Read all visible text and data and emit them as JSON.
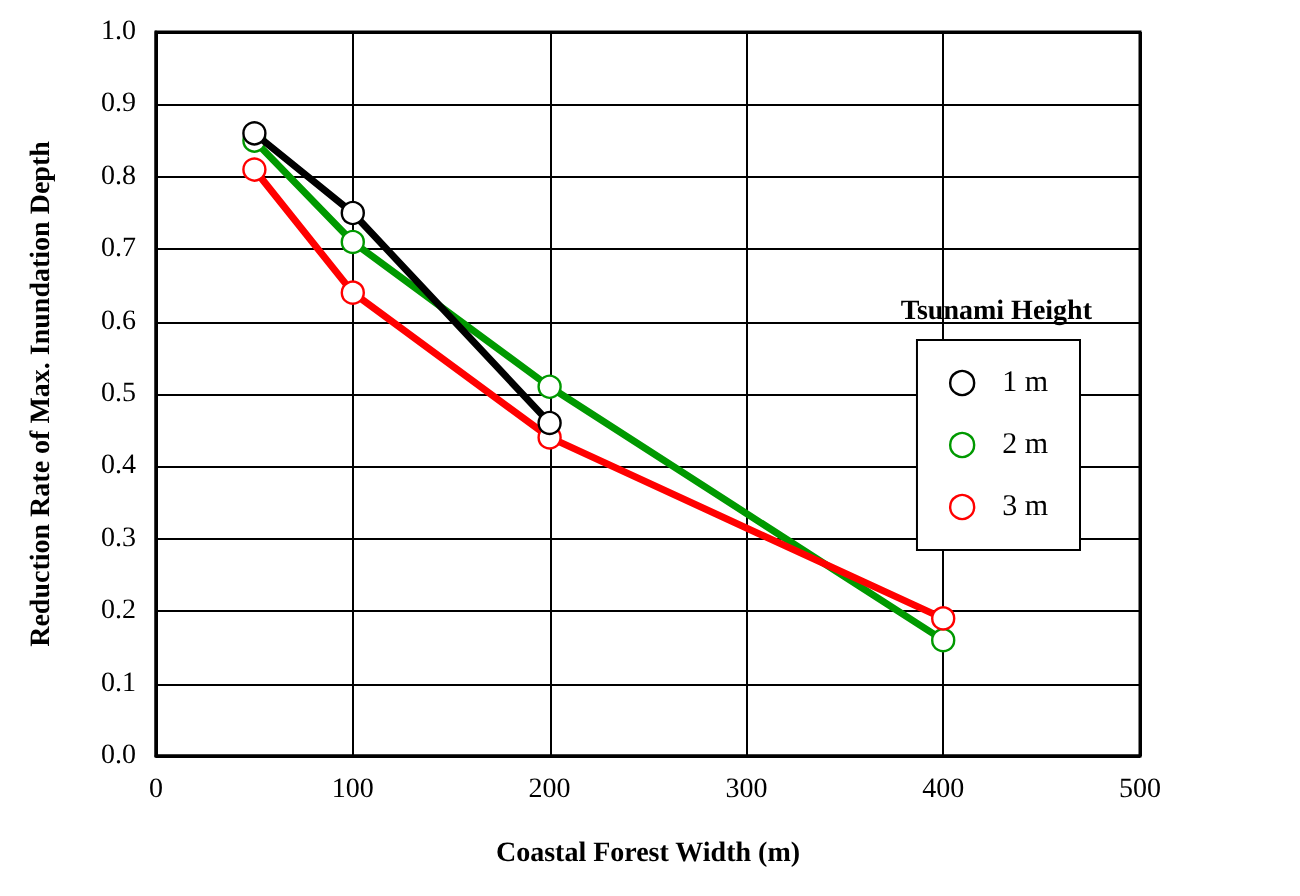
{
  "chart_data": {
    "type": "line",
    "xlabel": "Coastal Forest Width (m)",
    "ylabel": "Reduction Rate of Max. Inundation Depth",
    "legend_title": "Tsunami Height",
    "series": [
      {
        "name": "1 m",
        "color": "#000000",
        "x": [
          50,
          100,
          200
        ],
        "values": [
          0.86,
          0.75,
          0.46
        ]
      },
      {
        "name": "2 m",
        "color": "#009900",
        "x": [
          50,
          100,
          200,
          400
        ],
        "values": [
          0.85,
          0.71,
          0.51,
          0.16
        ]
      },
      {
        "name": "3 m",
        "color": "#ff0000",
        "x": [
          50,
          100,
          200,
          400
        ],
        "values": [
          0.81,
          0.64,
          0.44,
          0.19
        ]
      }
    ],
    "xlim": [
      0,
      500
    ],
    "xticks": [
      0,
      100,
      200,
      300,
      400,
      500
    ],
    "ylim": [
      0,
      1
    ],
    "yticks": [
      {
        "value": 0,
        "label": "0.0"
      },
      {
        "value": 0.1,
        "label": "0.1"
      },
      {
        "value": 0.2,
        "label": "0.2"
      },
      {
        "value": 0.3,
        "label": "0.3"
      },
      {
        "value": 0.4,
        "label": "0.4"
      },
      {
        "value": 0.5,
        "label": "0.5"
      },
      {
        "value": 0.6,
        "label": "0.6"
      },
      {
        "value": 0.7,
        "label": "0.7"
      },
      {
        "value": 0.8,
        "label": "0.8"
      },
      {
        "value": 0.9,
        "label": "0.9"
      },
      {
        "value": 1,
        "label": "1.0"
      }
    ],
    "grid": true,
    "legend": "right",
    "marker": "circle",
    "line_style": "solid"
  }
}
